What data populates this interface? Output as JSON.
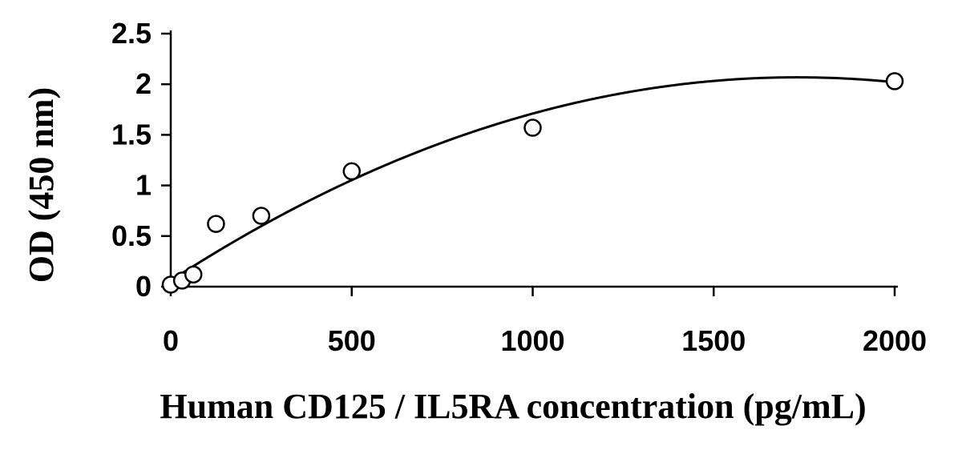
{
  "chart_data": {
    "type": "scatter",
    "title": "",
    "xlabel": "Human CD125 / IL5RA concentration (pg/mL)",
    "ylabel": "OD (450 nm)",
    "xlim": [
      0,
      2000
    ],
    "ylim": [
      0,
      2.5
    ],
    "x_ticks": [
      0,
      500,
      1000,
      1500,
      2000
    ],
    "y_ticks": [
      0,
      0.5,
      1,
      1.5,
      2,
      2.5
    ],
    "x_tick_labels": [
      "0",
      "500",
      "1000",
      "1500",
      "2000"
    ],
    "y_tick_labels": [
      "0",
      "0.5",
      "1",
      "1.5",
      "2",
      "2.5"
    ],
    "grid": false,
    "legend": "none",
    "series": [
      {
        "marker": "open-circle",
        "x": [
          0,
          31.25,
          62.5,
          125,
          250,
          500,
          1000,
          2000
        ],
        "y": [
          0.02,
          0.06,
          0.12,
          0.62,
          0.7,
          1.14,
          1.57,
          2.03
        ]
      }
    ],
    "fit_curve": {
      "type": "polynomial-2",
      "coefficients": [
        0.06,
        0.00232,
        -6.7e-07
      ]
    },
    "colors": {
      "axis": "#000000",
      "marker_stroke": "#000000",
      "marker_fill": "#ffffff",
      "curve": "#000000"
    }
  }
}
